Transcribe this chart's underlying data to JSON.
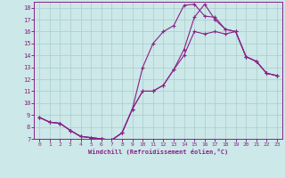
{
  "title": "",
  "xlabel": "Windchill (Refroidissement éolien,°C)",
  "ylabel": "",
  "bg_color": "#cce8e8",
  "grid_color": "#aacccc",
  "line_color": "#882288",
  "xlim": [
    -0.5,
    23.5
  ],
  "ylim": [
    7,
    18.5
  ],
  "xticks": [
    0,
    1,
    2,
    3,
    4,
    5,
    6,
    7,
    8,
    9,
    10,
    11,
    12,
    13,
    14,
    15,
    16,
    17,
    18,
    19,
    20,
    21,
    22,
    23
  ],
  "yticks": [
    7,
    8,
    9,
    10,
    11,
    12,
    13,
    14,
    15,
    16,
    17,
    18
  ],
  "line1_x": [
    0,
    1,
    2,
    3,
    4,
    5,
    6,
    7,
    8,
    9,
    10,
    11,
    12,
    13,
    14,
    15,
    16,
    17,
    18,
    19,
    20,
    21,
    22,
    23
  ],
  "line1_y": [
    8.8,
    8.4,
    8.3,
    7.7,
    7.2,
    7.1,
    7.0,
    6.9,
    7.5,
    9.5,
    11.0,
    11.0,
    11.5,
    12.8,
    14.0,
    16.0,
    15.8,
    16.0,
    15.8,
    16.0,
    13.9,
    13.5,
    12.5,
    12.3
  ],
  "line2_x": [
    0,
    1,
    2,
    3,
    4,
    5,
    6,
    7,
    8,
    9,
    10,
    11,
    12,
    13,
    14,
    15,
    16,
    17,
    18,
    19,
    20,
    21,
    22,
    23
  ],
  "line2_y": [
    8.8,
    8.4,
    8.3,
    7.7,
    7.2,
    7.1,
    7.0,
    6.9,
    7.5,
    9.5,
    13.0,
    15.0,
    16.0,
    16.5,
    18.2,
    18.3,
    17.3,
    17.2,
    16.2,
    16.0,
    13.9,
    13.5,
    12.5,
    12.3
  ],
  "line3_x": [
    0,
    1,
    2,
    3,
    4,
    5,
    6,
    7,
    8,
    9,
    10,
    11,
    12,
    13,
    14,
    15,
    16,
    17,
    18,
    19,
    20,
    21,
    22,
    23
  ],
  "line3_y": [
    8.8,
    8.4,
    8.3,
    7.7,
    7.2,
    7.1,
    7.0,
    6.9,
    7.5,
    9.5,
    11.0,
    11.0,
    11.5,
    12.8,
    14.5,
    17.2,
    18.3,
    17.0,
    16.2,
    16.0,
    13.9,
    13.5,
    12.5,
    12.3
  ]
}
